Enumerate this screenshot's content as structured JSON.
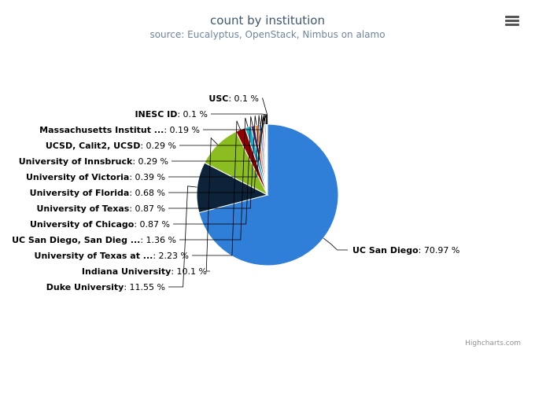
{
  "chart_data": {
    "type": "pie",
    "title": "count by institution",
    "subtitle": "source: Eucalyptus, OpenStack, Nimbus on alamo",
    "series": [
      {
        "name": "UC San Diego",
        "value": 70.97,
        "label": "70.97 %",
        "color": "#2f7ed8"
      },
      {
        "name": "Duke University",
        "value": 11.55,
        "label": "11.55 %",
        "color": "#0d233a"
      },
      {
        "name": "Indiana University",
        "value": 10.1,
        "label": "10.1 %",
        "color": "#8bbc21"
      },
      {
        "name": "University of Texas at ...",
        "value": 2.23,
        "label": "2.23 %",
        "color": "#910000"
      },
      {
        "name": "UC San Diego, San Dieg ...",
        "value": 1.36,
        "label": "1.36 %",
        "color": "#1aadce"
      },
      {
        "name": "University of Chicago",
        "value": 0.87,
        "label": "0.87 %",
        "color": "#492970"
      },
      {
        "name": "University of Texas",
        "value": 0.87,
        "label": "0.87 %",
        "color": "#f28f43"
      },
      {
        "name": "University of Florida",
        "value": 0.68,
        "label": "0.68 %",
        "color": "#77a1e5"
      },
      {
        "name": "University of Victoria",
        "value": 0.39,
        "label": "0.39 %",
        "color": "#c42525"
      },
      {
        "name": "University of Innsbruck",
        "value": 0.29,
        "label": "0.29 %",
        "color": "#a6c96a"
      },
      {
        "name": "UCSD, Calit2, UCSD",
        "value": 0.29,
        "label": "0.29 %",
        "color": "#2f7ed8"
      },
      {
        "name": "Massachusetts Institut ...",
        "value": 0.19,
        "label": "0.19 %",
        "color": "#0d233a"
      },
      {
        "name": "INESC ID",
        "value": 0.1,
        "label": "0.1 %",
        "color": "#8bbc21"
      },
      {
        "name": "USC",
        "value": 0.1,
        "label": "0.1 %",
        "color": "#910000"
      }
    ]
  },
  "credits": "Highcharts.com",
  "menu_icon": "hamburger-menu-icon"
}
